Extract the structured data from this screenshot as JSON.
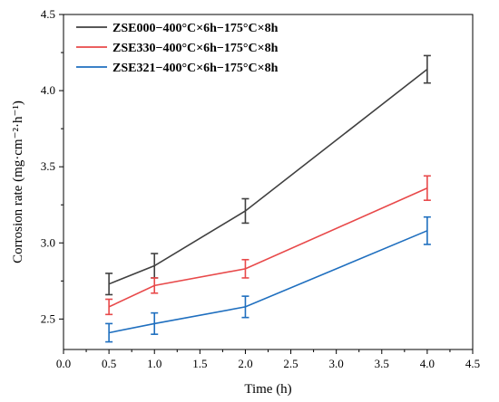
{
  "chart_data": {
    "type": "line",
    "xlabel": "Time (h)",
    "ylabel": "Corrosion rate (mg·cm⁻²·h⁻¹)",
    "xlim": [
      0.0,
      4.5
    ],
    "ylim": [
      2.3,
      4.5
    ],
    "x_ticks": [
      "0.0",
      "0.5",
      "1.0",
      "1.5",
      "2.0",
      "2.5",
      "3.0",
      "3.5",
      "4.0",
      "4.5"
    ],
    "y_ticks": [
      "2.5",
      "3.0",
      "3.5",
      "4.0",
      "4.5"
    ],
    "x_tick_values": [
      0.0,
      0.5,
      1.0,
      1.5,
      2.0,
      2.5,
      3.0,
      3.5,
      4.0,
      4.5
    ],
    "y_tick_values": [
      2.5,
      3.0,
      3.5,
      4.0,
      4.5
    ],
    "legend_position": "top-left",
    "grid": false,
    "x": [
      0.5,
      1.0,
      2.0,
      4.0
    ],
    "series": [
      {
        "name": "ZSE000−400°C×6h−175°C×8h",
        "color": "#404040",
        "values": [
          2.73,
          2.85,
          3.21,
          4.14
        ],
        "errors": [
          0.07,
          0.08,
          0.08,
          0.09
        ]
      },
      {
        "name": "ZSE330−400°C×6h−175°C×8h",
        "color": "#e8494a",
        "values": [
          2.58,
          2.72,
          2.83,
          3.36
        ],
        "errors": [
          0.05,
          0.05,
          0.06,
          0.08
        ]
      },
      {
        "name": "ZSE321−400°C×6h−175°C×8h",
        "color": "#1f6fbf",
        "values": [
          2.41,
          2.47,
          2.58,
          3.08
        ],
        "errors": [
          0.06,
          0.07,
          0.07,
          0.09
        ]
      }
    ]
  }
}
